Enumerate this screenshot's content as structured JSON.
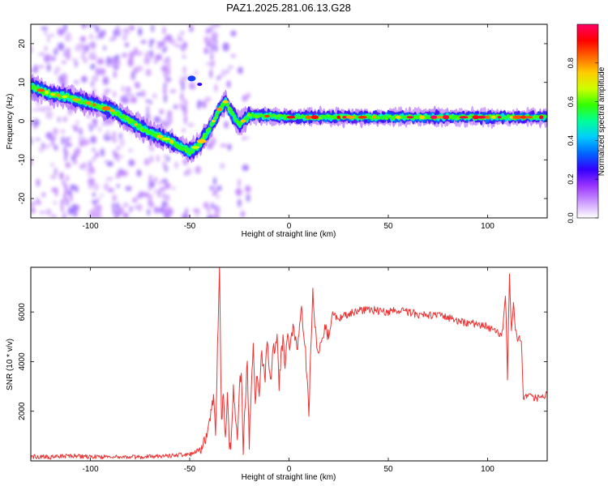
{
  "title": "PAZ1.2025.281.06.13.G28",
  "chart_data": [
    {
      "type": "heatmap",
      "title": "PAZ1.2025.281.06.13.G28",
      "xlabel": "Height of straight line (km)",
      "ylabel": "Frequency (Hz)",
      "xlim": [
        -130,
        130
      ],
      "ylim": [
        -25,
        25
      ],
      "xticks": [
        -100,
        -50,
        0,
        50,
        100
      ],
      "yticks": [
        -20,
        -10,
        0,
        10,
        20
      ],
      "colorbar": {
        "label": "Normalized spectral amplitude",
        "range": [
          0.0,
          1.0
        ],
        "ticks": [
          0.0,
          0.2,
          0.4,
          0.6,
          0.8
        ],
        "colors": [
          "#ffffff",
          "#cc99ff",
          "#9933ff",
          "#3300ff",
          "#0066ff",
          "#00ccff",
          "#00ff99",
          "#33ff00",
          "#ccff00",
          "#ffcc00",
          "#ff6600",
          "#ff0000",
          "#ff0066"
        ]
      },
      "ridge": {
        "x": [
          -130,
          -120,
          -110,
          -100,
          -90,
          -80,
          -70,
          -60,
          -50,
          -45,
          -40,
          -35,
          -32,
          -30,
          -25,
          -20,
          0,
          50,
          100,
          130
        ],
        "y": [
          9,
          7,
          6,
          4.5,
          3,
          0,
          -3,
          -5,
          -8,
          -6,
          -2,
          3,
          5,
          3,
          -1,
          1.5,
          1,
          1,
          1,
          1
        ]
      }
    },
    {
      "type": "line",
      "xlabel": "Height of straight line (km)",
      "ylabel": "SNR (10 * v/v)",
      "xlim": [
        -130,
        130
      ],
      "ylim": [
        0,
        7800
      ],
      "xticks": [
        -100,
        -50,
        0,
        50,
        100
      ],
      "yticks": [
        2000,
        4000,
        6000
      ],
      "series": [
        {
          "name": "SNR",
          "color": "#ee3333",
          "x": [
            -130,
            -120,
            -110,
            -100,
            -90,
            -80,
            -70,
            -60,
            -50,
            -45,
            -42,
            -40,
            -38,
            -37,
            -36,
            -35,
            -34,
            -33,
            -32,
            -31,
            -30,
            -29,
            -28,
            -27,
            -26,
            -25,
            -24,
            -23,
            -22,
            -21,
            -20,
            -19,
            -18,
            -17,
            -16,
            -15,
            -14,
            -13,
            -12,
            -11,
            -10,
            -9,
            -8,
            -7,
            -6,
            -5,
            -4,
            -3,
            -2,
            -1,
            0,
            2,
            4,
            6,
            8,
            10,
            12,
            14,
            16,
            18,
            20,
            22,
            25,
            30,
            35,
            40,
            45,
            50,
            55,
            60,
            65,
            70,
            75,
            80,
            85,
            90,
            95,
            100,
            103,
            105,
            107,
            108,
            109,
            110,
            111,
            112,
            113,
            114,
            115,
            116,
            117,
            118,
            120,
            125,
            130
          ],
          "y": [
            180,
            150,
            200,
            160,
            170,
            150,
            180,
            220,
            250,
            450,
            900,
            1600,
            2600,
            1200,
            4500,
            7800,
            1500,
            2700,
            900,
            2800,
            200,
            1000,
            3100,
            1700,
            700,
            2900,
            3700,
            400,
            2400,
            3900,
            700,
            2800,
            4700,
            2200,
            3600,
            2600,
            4500,
            3800,
            3300,
            4800,
            3900,
            3300,
            4700,
            4200,
            5400,
            3000,
            4300,
            4800,
            3700,
            5000,
            4600,
            5300,
            4500,
            6200,
            4800,
            2000,
            6800,
            4500,
            4700,
            5300,
            5000,
            5900,
            5700,
            5950,
            6050,
            6100,
            6050,
            6000,
            6050,
            6000,
            5900,
            5900,
            5850,
            5750,
            5650,
            5550,
            5500,
            5400,
            5250,
            5200,
            5100,
            5600,
            6700,
            3400,
            7500,
            5200,
            6300,
            5400,
            4900,
            5100,
            4700,
            2500,
            2600,
            2550,
            2700
          ]
        }
      ]
    }
  ]
}
